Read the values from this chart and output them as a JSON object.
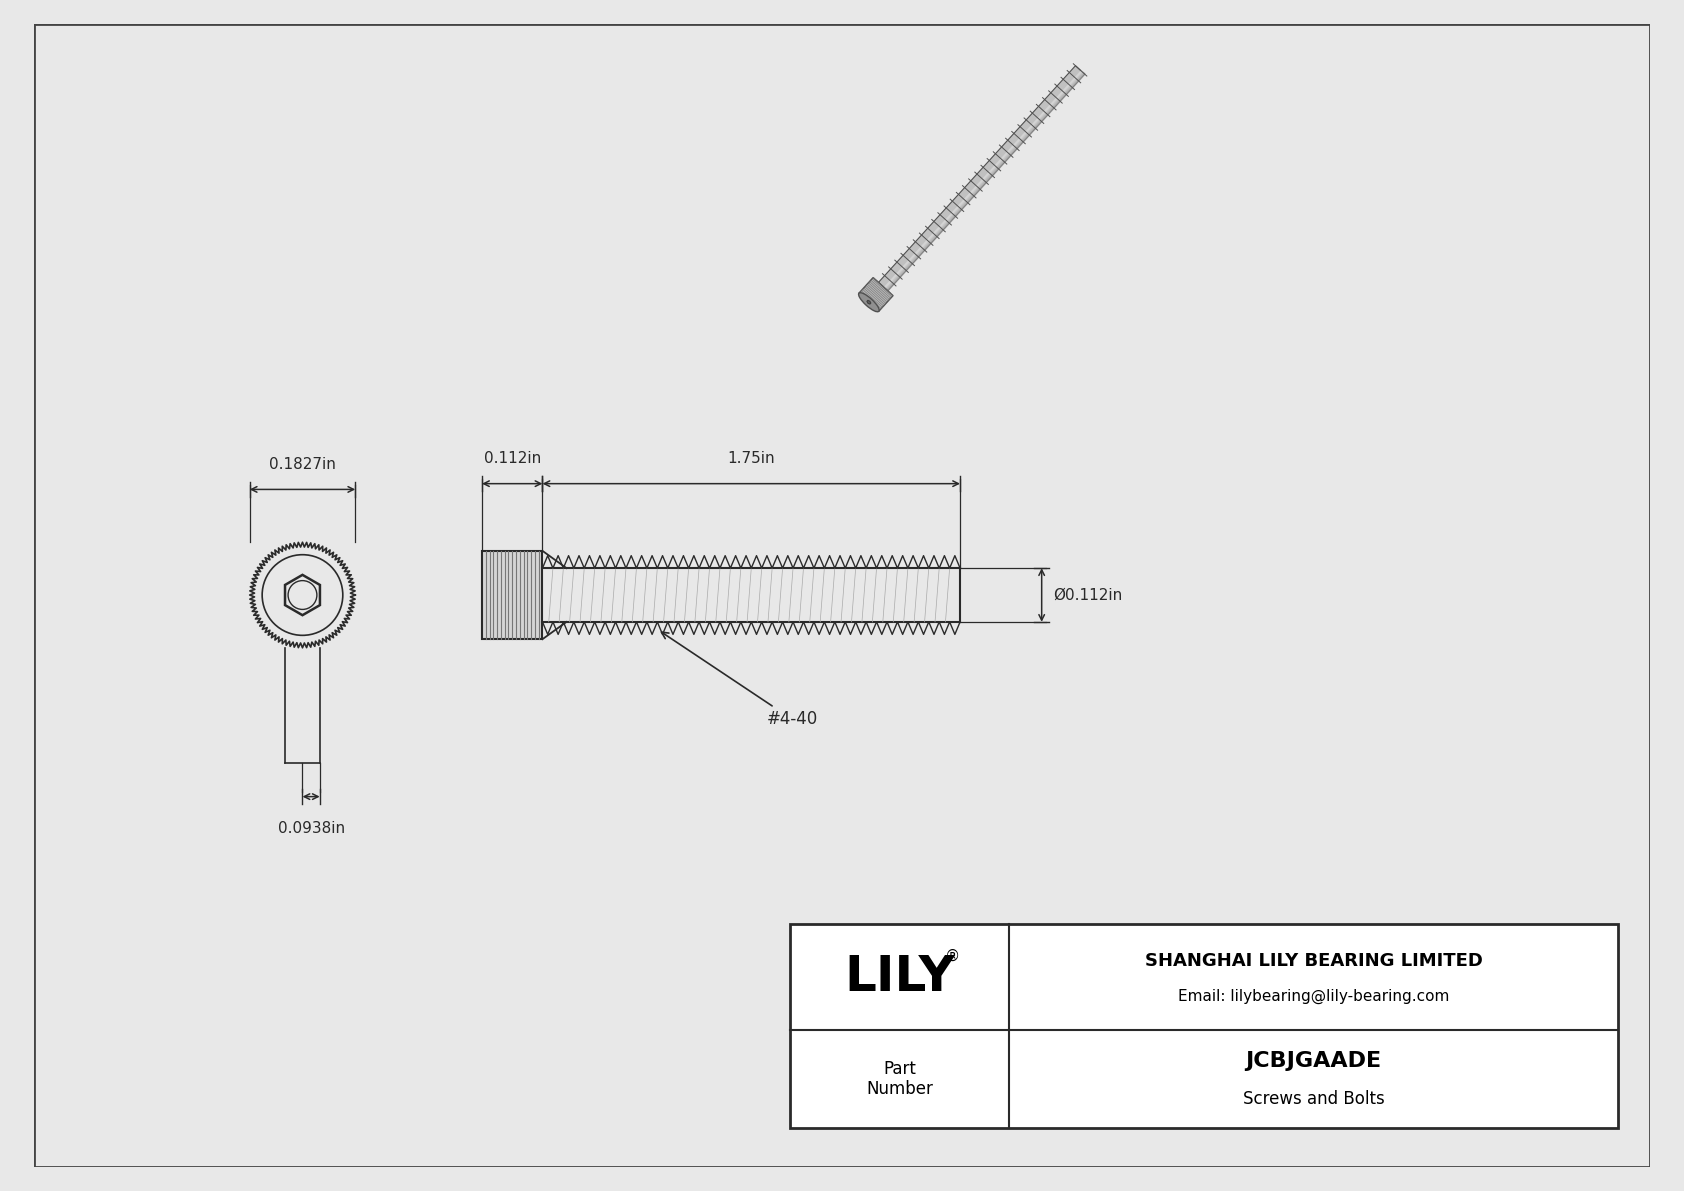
{
  "bg_color": "#e8e8e8",
  "inner_bg_color": "#ffffff",
  "border_color": "#444444",
  "draw_color": "#2a2a2a",
  "dim_color": "#2a2a2a",
  "title_text": "JCBJGAADE",
  "subtitle_text": "Screws and Bolts",
  "company_name": "SHANGHAI LILY BEARING LIMITED",
  "company_email": "Email: lilybearing@lily-bearing.com",
  "company_logo": "LILY",
  "part_label": "Part\nNumber",
  "dim_head_width": "0.1827in",
  "dim_key_width": "0.0938in",
  "dim_head_length": "0.112in",
  "dim_shank_length": "1.75in",
  "dim_shank_dia": "Ø0.112in",
  "thread_label": "#4-40",
  "screw_head_color": "#b0b0b0",
  "screw_thread_color": "#888888",
  "screw_bg_color": "#d0d0d0"
}
